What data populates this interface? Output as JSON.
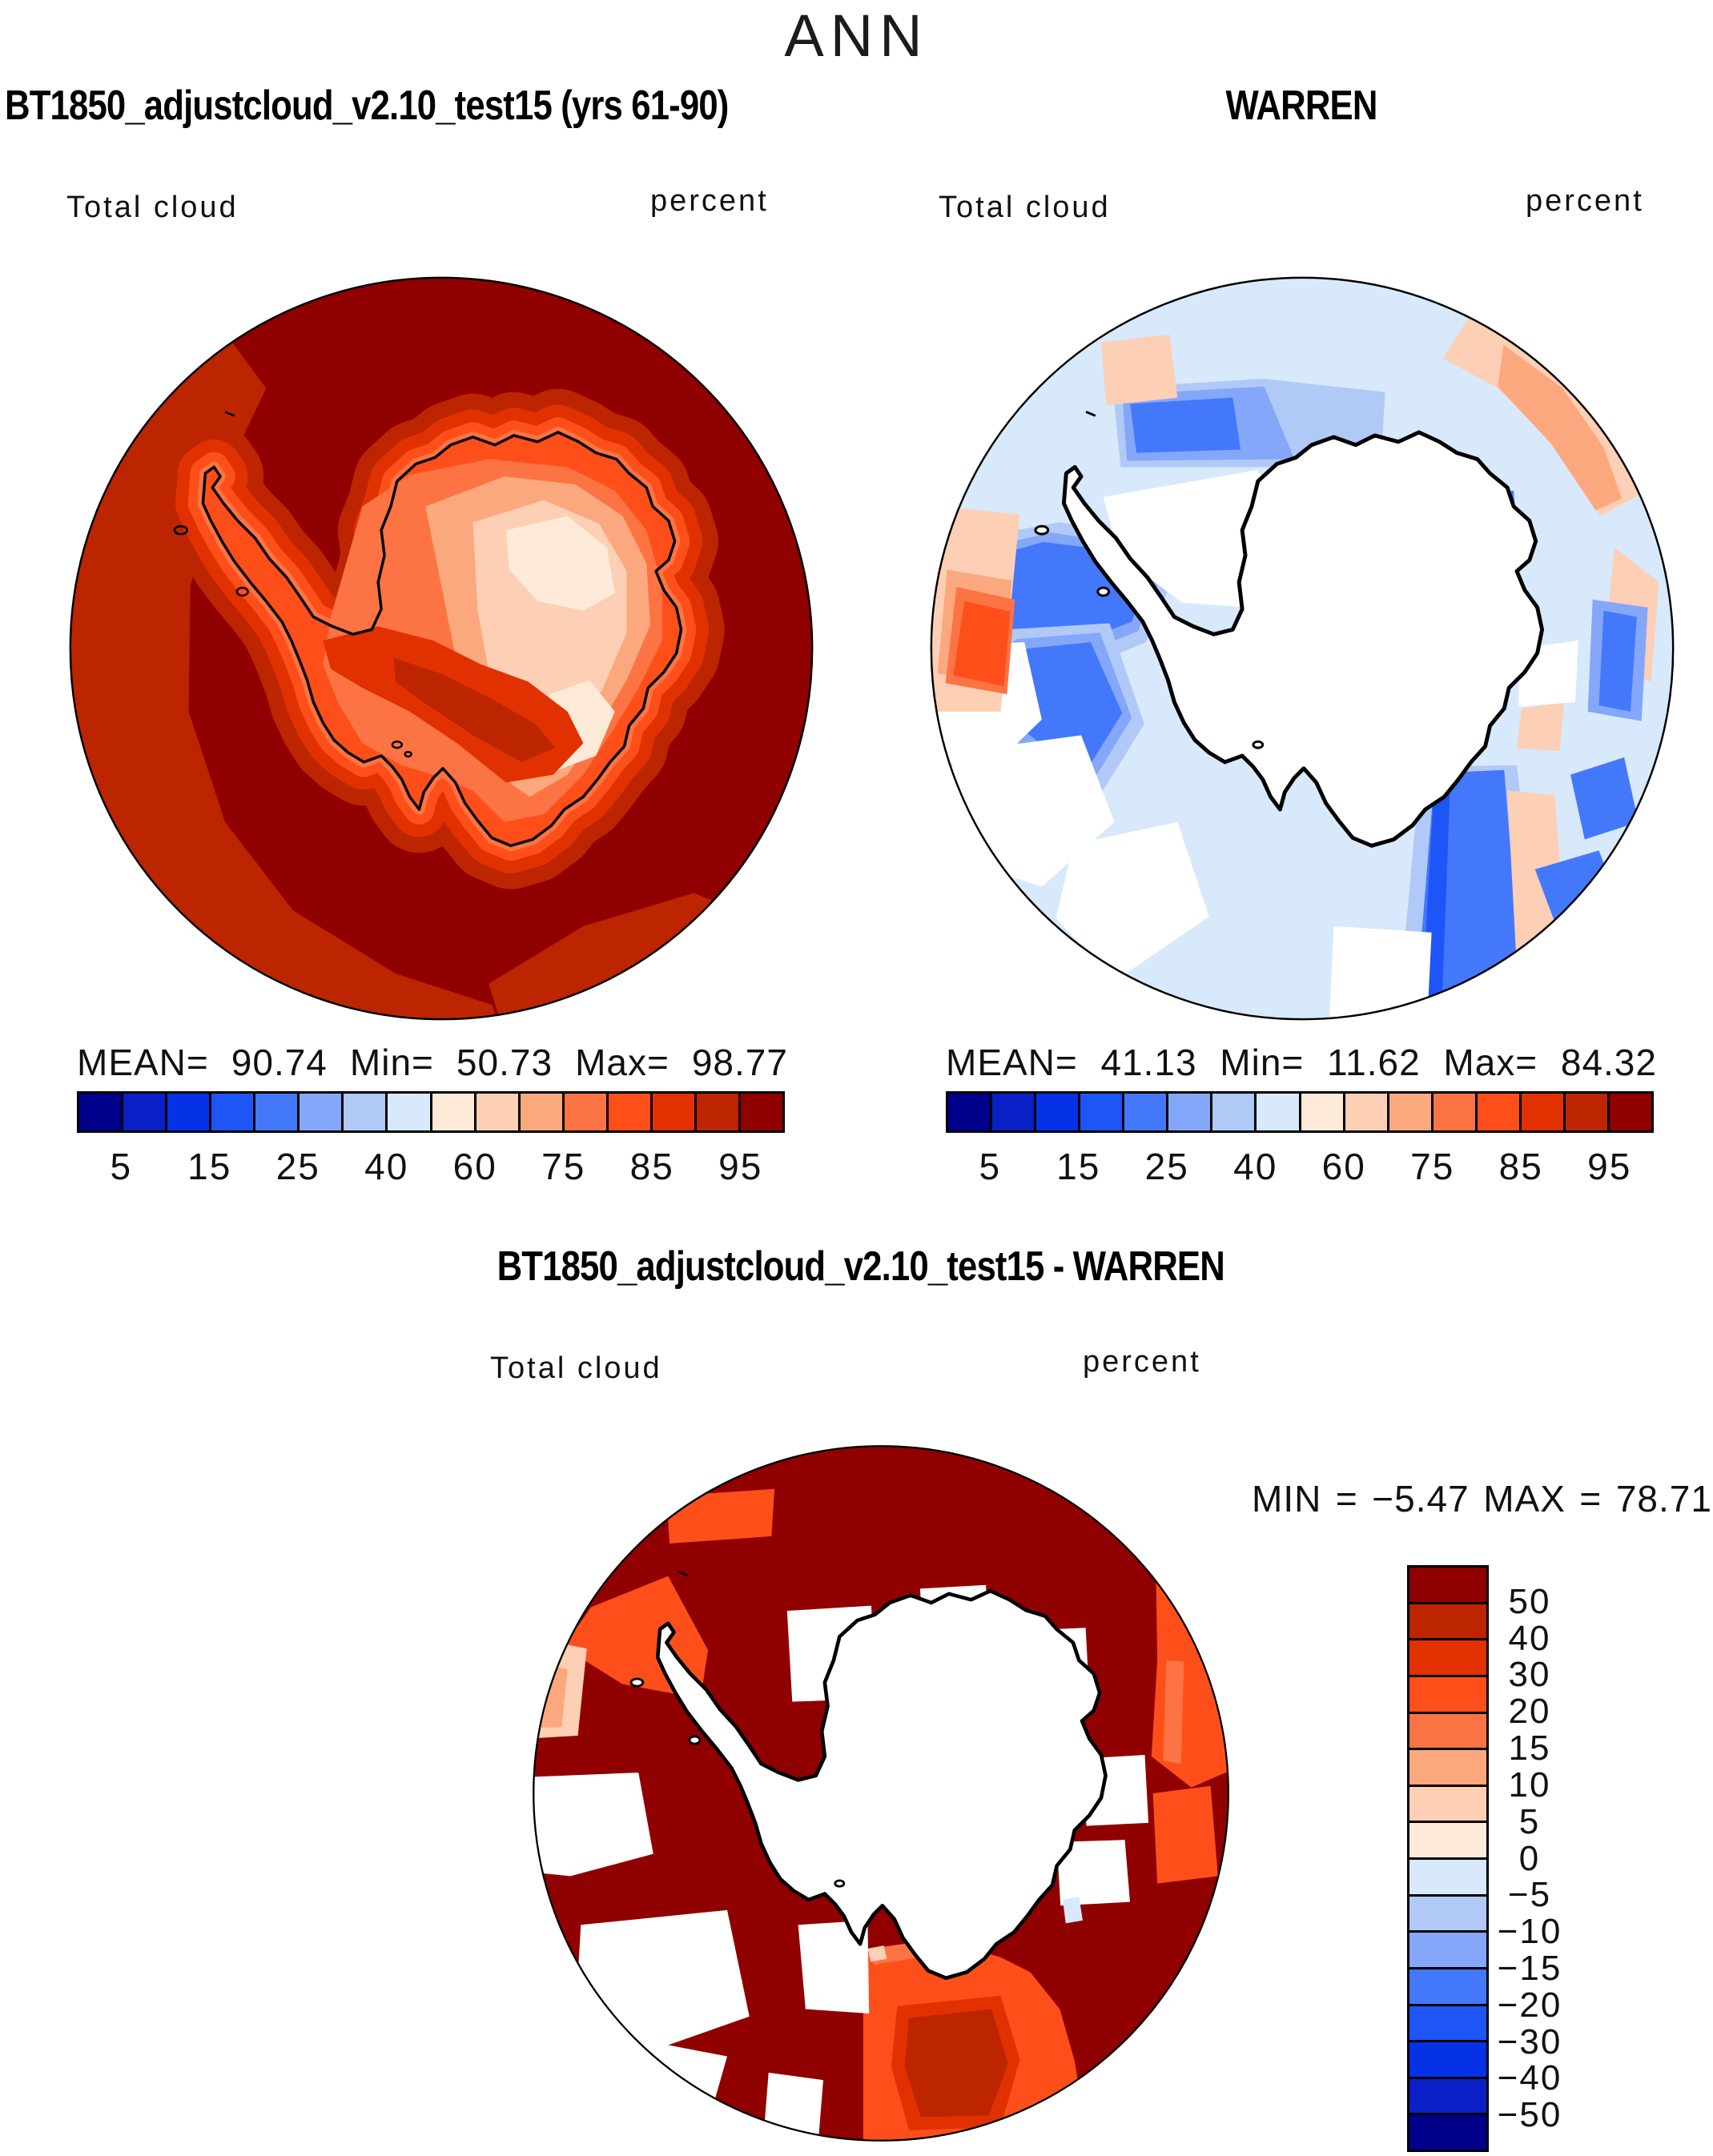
{
  "page": {
    "title": "ANN"
  },
  "palette_low_to_high": [
    "#00008B",
    "#0A20C6",
    "#0532E6",
    "#1E55F7",
    "#4478FB",
    "#84A7F9",
    "#B1C9F7",
    "#D7E9FB",
    "#FDEAD9",
    "#FDCFB4",
    "#FCA87E",
    "#FC7443",
    "#FE4F1B",
    "#E23101",
    "#BC2500",
    "#900000"
  ],
  "panels": [
    {
      "title": "BT1850_adjustcloud_v2.10_test15 (yrs 61-90)",
      "variable_label": "Total cloud",
      "units_label": "percent",
      "stats": [
        {
          "label": "MEAN=",
          "value": "90.74"
        },
        {
          "label": "Min=",
          "value": "50.73"
        },
        {
          "label": "Max=",
          "value": "98.77"
        }
      ]
    },
    {
      "title": "WARREN",
      "variable_label": "Total cloud",
      "units_label": "percent",
      "stats": [
        {
          "label": "MEAN=",
          "value": "41.13"
        },
        {
          "label": "Min=",
          "value": "11.62"
        },
        {
          "label": "Max=",
          "value": "84.32"
        }
      ]
    },
    {
      "title": "BT1850_adjustcloud_v2.10_test15 - WARREN",
      "variable_label": "Total cloud",
      "units_label": "percent",
      "stats": [
        {
          "label": "MIN",
          "eq": "=",
          "value": "−5.47"
        },
        {
          "label": "MAX",
          "eq": "=",
          "value": "78.71"
        }
      ]
    }
  ],
  "colorbars": [
    {
      "orientation": "horizontal",
      "ticks": [
        {
          "i": 1,
          "label": "5"
        },
        {
          "i": 3,
          "label": "15"
        },
        {
          "i": 5,
          "label": "25"
        },
        {
          "i": 7,
          "label": "40"
        },
        {
          "i": 9,
          "label": "60"
        },
        {
          "i": 11,
          "label": "75"
        },
        {
          "i": 13,
          "label": "85"
        },
        {
          "i": 15,
          "label": "95"
        }
      ]
    },
    {
      "orientation": "horizontal",
      "ticks": [
        {
          "i": 1,
          "label": "5"
        },
        {
          "i": 3,
          "label": "15"
        },
        {
          "i": 5,
          "label": "25"
        },
        {
          "i": 7,
          "label": "40"
        },
        {
          "i": 9,
          "label": "60"
        },
        {
          "i": 11,
          "label": "75"
        },
        {
          "i": 13,
          "label": "85"
        },
        {
          "i": 15,
          "label": "95"
        }
      ]
    },
    {
      "orientation": "vertical",
      "ticks": [
        {
          "i": 1,
          "label": "50"
        },
        {
          "i": 2,
          "label": "40"
        },
        {
          "i": 3,
          "label": "30"
        },
        {
          "i": 4,
          "label": "20"
        },
        {
          "i": 5,
          "label": "15"
        },
        {
          "i": 6,
          "label": "10"
        },
        {
          "i": 7,
          "label": "5"
        },
        {
          "i": 8,
          "label": "0"
        },
        {
          "i": 9,
          "label": "−5"
        },
        {
          "i": 10,
          "label": "−10"
        },
        {
          "i": 11,
          "label": "−15"
        },
        {
          "i": 12,
          "label": "−20"
        },
        {
          "i": 13,
          "label": "−30"
        },
        {
          "i": 14,
          "label": "−40"
        },
        {
          "i": 15,
          "label": "−50"
        }
      ]
    }
  ],
  "chart_data": [
    {
      "type": "heatmap",
      "chart_kind": "filled-contour south-polar stereographic map of Antarctica and Southern Ocean",
      "season": "ANN",
      "title": "BT1850_adjustcloud_v2.10_test15 (yrs 61-90)",
      "variable": "Total cloud",
      "units": "percent",
      "stats": {
        "mean": 90.74,
        "min": 50.73,
        "max": 98.77
      },
      "contour_levels": [
        0,
        5,
        10,
        15,
        20,
        25,
        30,
        40,
        50,
        60,
        70,
        75,
        80,
        85,
        90,
        95,
        100
      ],
      "legend_labeled_levels": [
        5,
        15,
        25,
        40,
        60,
        75,
        85,
        95
      ],
      "legend_position": "below-horizontal",
      "palette_low_to_high": [
        "#00008B",
        "#0A20C6",
        "#0532E6",
        "#1E55F7",
        "#4478FB",
        "#84A7F9",
        "#B1C9F7",
        "#D7E9FB",
        "#FDEAD9",
        "#FDCFB4",
        "#FCA87E",
        "#FC7443",
        "#FE4F1B",
        "#E23101",
        "#BC2500",
        "#900000"
      ],
      "reading": "Ocean almost everywhere in the 95-100% bin (dark red) with a 90-95% band (brick red) in the western/southern sectors; cloud fraction decreases inland over Antarctica through orange and salmon bins to the palest 50-60% bins over the East Antarctic plateau."
    },
    {
      "type": "heatmap",
      "chart_kind": "filled-contour south-polar stereographic map of Antarctica and Southern Ocean",
      "season": "ANN",
      "title": "WARREN",
      "variable": "Total cloud",
      "units": "percent",
      "stats": {
        "mean": 41.13,
        "min": 11.62,
        "max": 84.32
      },
      "contour_levels": [
        0,
        5,
        10,
        15,
        20,
        25,
        30,
        40,
        50,
        60,
        70,
        75,
        80,
        85,
        90,
        95,
        100
      ],
      "legend_labeled_levels": [
        5,
        15,
        25,
        40,
        60,
        75,
        85,
        95
      ],
      "legend_position": "below-horizontal",
      "palette_low_to_high": [
        "#00008B",
        "#0A20C6",
        "#0532E6",
        "#1E55F7",
        "#4478FB",
        "#84A7F9",
        "#B1C9F7",
        "#D7E9FB",
        "#FDEAD9",
        "#FDCFB4",
        "#FCA87E",
        "#FC7443",
        "#FE4F1B",
        "#E23101",
        "#BC2500",
        "#900000"
      ],
      "reading": "Blocky observed climatology: mostly 30-40% (pale blue) over the ocean, patches of 15-25% (medium blue) especially in the Pacific/Bellingshausen sector, 50-60% peach arcs near the map edge, one 70-75% orange cell near 60S at far left, white (40-50% bin / missing) over the continent and several wedges."
    },
    {
      "type": "heatmap",
      "chart_kind": "filled-contour south-polar stereographic difference map",
      "season": "ANN",
      "title": "BT1850_adjustcloud_v2.10_test15 - WARREN",
      "variable": "Total cloud difference (model minus observations)",
      "units": "percent",
      "stats": {
        "min": -5.47,
        "max": 78.71
      },
      "contour_levels": [
        -50,
        -40,
        -30,
        -20,
        -15,
        -10,
        -5,
        0,
        5,
        10,
        15,
        20,
        30,
        40,
        50
      ],
      "legend_labeled_levels": [
        50,
        40,
        30,
        20,
        15,
        10,
        5,
        0,
        -5,
        -10,
        -15,
        -20,
        -30,
        -40,
        -50
      ],
      "legend_position": "right-vertical",
      "palette_low_to_high": [
        "#00008B",
        "#0A20C6",
        "#0532E6",
        "#1E55F7",
        "#4478FB",
        "#84A7F9",
        "#B1C9F7",
        "#D7E9FB",
        "#FDEAD9",
        "#FDCFB4",
        "#FCA87E",
        "#FC7443",
        "#FE4F1B",
        "#E23101",
        "#BC2500",
        "#900000"
      ],
      "reading": "Model exceeds WARREN by more than +50% (dark red) over most of the circumpolar ocean; +30 to +50% (bright orange) bands near the map edge, top-left and in the Ross/Indian sector at bottom; small near-zero light patches at far left; white wedges and the continent interior have no difference values."
    }
  ]
}
